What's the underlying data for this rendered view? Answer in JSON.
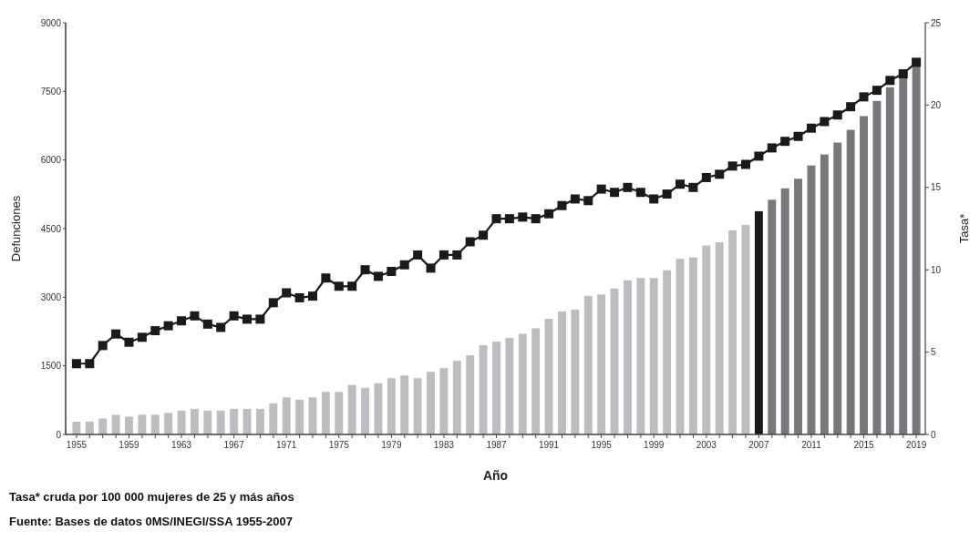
{
  "chart_data": {
    "type": "bar",
    "xlabel": "Año",
    "ylabel": "Defunciones",
    "y2label": "Tasa*",
    "annotations": [
      "Tasa* cruda por 100 000 mujeres de 25 y más años",
      "Fuente: Bases de datos 0MS/INEGI/SSA 1955-2007"
    ],
    "categories": [
      "1955",
      null,
      null,
      null,
      "1959",
      null,
      null,
      null,
      "1963",
      null,
      null,
      null,
      "1967",
      null,
      null,
      null,
      "1971",
      null,
      null,
      null,
      "1975",
      null,
      null,
      null,
      "1979",
      null,
      null,
      null,
      "1983",
      null,
      null,
      null,
      "1987",
      null,
      null,
      null,
      "1991",
      null,
      null,
      null,
      "1995",
      null,
      null,
      null,
      "1999",
      null,
      null,
      null,
      "2003",
      null,
      null,
      null,
      "2007",
      null,
      null,
      null,
      "2011",
      null,
      null,
      null,
      "2015",
      null,
      null,
      null,
      "2019"
    ],
    "ylim": [
      0,
      9000
    ],
    "yticks": [
      0,
      1500,
      3000,
      4500,
      6000,
      7500,
      9000
    ],
    "y2lim": [
      0,
      25
    ],
    "y2ticks": [
      0,
      5,
      10,
      15,
      20,
      25
    ],
    "grid": false,
    "series": [
      {
        "values": [
          280,
          280,
          350,
          430,
          390,
          430,
          430,
          470,
          520,
          560,
          520,
          520,
          560,
          560,
          560,
          680,
          810,
          760,
          810,
          930,
          930,
          1080,
          1020,
          1120,
          1230,
          1290,
          1230,
          1370,
          1450,
          1610,
          1730,
          1950,
          2030,
          2110,
          2200,
          2320,
          2530,
          2690,
          2730,
          3030,
          3060,
          3190,
          3370,
          3420,
          3420,
          3590,
          3840,
          3870,
          4130,
          4200,
          4460,
          4580,
          4880,
          5130,
          5380,
          5590,
          5880,
          6120,
          6380,
          6660,
          6960,
          7290,
          7590,
          7840,
          8100
        ],
        "colors": [
          "#bcbdc0",
          "#bcbdc0",
          "#bcbdc0",
          "#bcbdc0",
          "#bcbdc0",
          "#bcbdc0",
          "#bcbdc0",
          "#bcbdc0",
          "#bcbdc0",
          "#bcbdc0",
          "#bcbdc0",
          "#bcbdc0",
          "#bcbdc0",
          "#bcbdc0",
          "#bcbdc0",
          "#bcbdc0",
          "#bcbdc0",
          "#bcbdc0",
          "#bcbdc0",
          "#bcbdc0",
          "#bcbdc0",
          "#bcbdc0",
          "#bcbdc0",
          "#bcbdc0",
          "#bcbdc0",
          "#bcbdc0",
          "#bcbdc0",
          "#bcbdc0",
          "#bcbdc0",
          "#bcbdc0",
          "#bcbdc0",
          "#bcbdc0",
          "#bcbdc0",
          "#bcbdc0",
          "#bcbdc0",
          "#bcbdc0",
          "#bcbdc0",
          "#bcbdc0",
          "#bcbdc0",
          "#bcbdc0",
          "#bcbdc0",
          "#bcbdc0",
          "#bcbdc0",
          "#bcbdc0",
          "#bcbdc0",
          "#bcbdc0",
          "#bcbdc0",
          "#bcbdc0",
          "#bcbdc0",
          "#bcbdc0",
          "#bcbdc0",
          "#bcbdc0",
          "#1a1a1a",
          "#76787c",
          "#76787c",
          "#76787c",
          "#76787c",
          "#76787c",
          "#76787c",
          "#76787c",
          "#76787c",
          "#76787c",
          "#76787c",
          "#76787c",
          "#76787c"
        ]
      },
      {
        "type": "line",
        "axis": "y2",
        "color": "#1a1a1a",
        "marker": "square",
        "line_style": "solid",
        "values": [
          4.3,
          4.3,
          5.4,
          6.1,
          5.6,
          5.9,
          6.3,
          6.6,
          6.9,
          7.2,
          6.7,
          6.5,
          7.2,
          7,
          7,
          8,
          8.6,
          8.3,
          8.4,
          9.5,
          9,
          9,
          10,
          9.6,
          9.9,
          10.3,
          10.9,
          10.1,
          10.9,
          10.9,
          11.7,
          12.1,
          13.1,
          13.1,
          13.2,
          13.1,
          13.4,
          13.9,
          14.3,
          14.2,
          14.9,
          14.7,
          15,
          14.7,
          14.3,
          14.6,
          15.2,
          15,
          15.6,
          15.8,
          16.3,
          16.4,
          16.9,
          17.4,
          17.8,
          18.1,
          18.6,
          19,
          19.4,
          19.9,
          20.5,
          20.9,
          21.5,
          21.9,
          22.6
        ]
      }
    ]
  }
}
